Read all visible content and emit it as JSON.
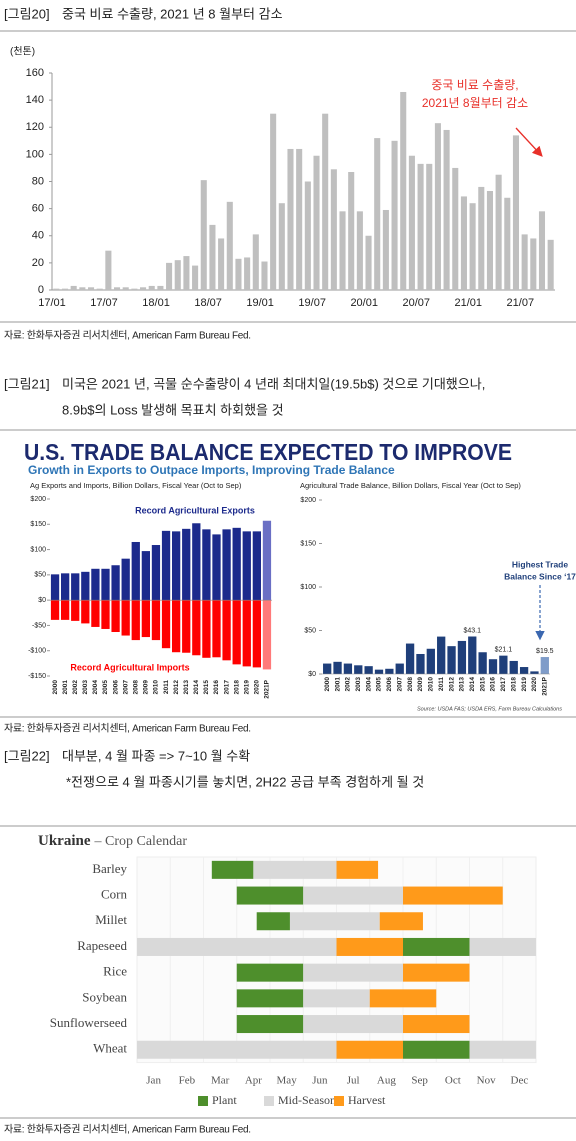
{
  "figures": [
    {
      "label": "[그림20]",
      "caption": [
        "중국 비료 수출량, 2021 년 8 월부터 감소"
      ],
      "source": "자료: 한화투자증권 리서치센터, American Farm Bureau Fed."
    },
    {
      "label": "[그림21]",
      "caption": [
        "미국은 2021 년, 곡물 순수출량이 4 년래 최대치일(19.5b$) 것으로 기대했으나,",
        "8.9b$의 Loss 발생해 목표치 하회했을 것"
      ],
      "source": "자료: 한화투자증권 리서치센터, American Farm Bureau Fed.",
      "banner": {
        "title": "U.S. TRADE BALANCE EXPECTED TO IMPROVE",
        "subtitle": "Growth in Exports to Outpace Imports, Improving Trade Balance",
        "source": "Source: USDA FAS; USDA ERS, Farm Bureau Calculations"
      }
    },
    {
      "label": "[그림22]",
      "caption": [
        "대부분, 4 월 파종 => 7~10 월 수확",
        "*전쟁으로 4 월 파종시기를 놓치면, 2H22 공급 부족 경험하게 될 것"
      ],
      "source": "자료: 한화투자증권 리서치센터, American Farm Bureau Fed."
    }
  ],
  "chart_data": [
    {
      "type": "bar",
      "ylabel": "(천톤)",
      "categories": [
        "17/01",
        null,
        null,
        null,
        null,
        null,
        "17/07",
        null,
        null,
        null,
        null,
        null,
        "18/01",
        null,
        null,
        null,
        null,
        null,
        "18/07",
        null,
        null,
        null,
        null,
        null,
        "19/01",
        null,
        null,
        null,
        null,
        null,
        "19/07",
        null,
        null,
        null,
        null,
        null,
        "20/01",
        null,
        null,
        null,
        null,
        null,
        "20/07",
        null,
        null,
        null,
        null,
        null,
        "21/01",
        null,
        null,
        null,
        null,
        null,
        "21/07",
        null,
        null,
        null
      ],
      "values": [
        1,
        1,
        3,
        2,
        2,
        1,
        29,
        2,
        2,
        1,
        2,
        3,
        3,
        20,
        22,
        25,
        18,
        81,
        48,
        38,
        65,
        23,
        24,
        41,
        21,
        130,
        64,
        104,
        104,
        80,
        99,
        130,
        89,
        58,
        87,
        58,
        40,
        112,
        59,
        110,
        146,
        99,
        93,
        93,
        123,
        118,
        90,
        69,
        64,
        76,
        73,
        85,
        68,
        114,
        41,
        38,
        58,
        37
      ],
      "color": "#bfbfbf",
      "ylim": [
        0,
        160
      ],
      "yticks": [
        0,
        20,
        40,
        60,
        80,
        100,
        120,
        140,
        160
      ],
      "annotation": [
        "중국 비료 수출량,",
        "2021년 8월부터 감소"
      ],
      "annotation_color": "#e8302a"
    },
    {
      "type": "bar",
      "title": "Ag Exports and Imports, Billion Dollars, Fiscal Year (Oct to Sep)",
      "categories": [
        "2000",
        "2001",
        "2002",
        "2003",
        "2004",
        "2005",
        "2006",
        "2007",
        "2008",
        "2009",
        "2010",
        "2011",
        "2012",
        "2013",
        "2014",
        "2015",
        "2016",
        "2017",
        "2018",
        "2019",
        "2020",
        "2021P"
      ],
      "series": [
        {
          "name": "Record Agricultural Exports",
          "color": "#1c2a8c",
          "forecast_color": "#6a6fc4",
          "values": [
            51,
            53,
            53,
            56,
            62,
            62,
            69,
            82,
            115,
            97,
            109,
            137,
            136,
            141,
            152,
            140,
            130,
            140,
            143,
            136,
            136,
            157
          ]
        },
        {
          "name": "Record Agricultural Imports",
          "color": "#ff0000",
          "forecast_color": "#ff7a7a",
          "values": [
            -39,
            -39,
            -41,
            -46,
            -53,
            -57,
            -63,
            -70,
            -79,
            -73,
            -79,
            -95,
            -103,
            -104,
            -109,
            -114,
            -113,
            -119,
            -127,
            -131,
            -133,
            -137
          ]
        }
      ],
      "ylim": [
        -150,
        200
      ],
      "yticks": [
        {
          "value": 200,
          "label": "$200"
        },
        {
          "value": 150,
          "label": "$150"
        },
        {
          "value": 100,
          "label": "$100"
        },
        {
          "value": 50,
          "label": "$50"
        },
        {
          "value": 0,
          "label": "$0"
        },
        {
          "value": -50,
          "label": "-$50"
        },
        {
          "value": -100,
          "label": "-$100"
        },
        {
          "value": -150,
          "label": "-$150"
        }
      ]
    },
    {
      "type": "bar",
      "title": "Agricultural Trade Balance, Billion Dollars, Fiscal Year (Oct to Sep)",
      "categories": [
        "2000",
        "2001",
        "2002",
        "2003",
        "2004",
        "2005",
        "2006",
        "2007",
        "2008",
        "2009",
        "2010",
        "2011",
        "2012",
        "2013",
        "2014",
        "2015",
        "2016",
        "2017",
        "2018",
        "2019",
        "2020",
        "2021P"
      ],
      "values": [
        12,
        14,
        12,
        10,
        9,
        5,
        6,
        12,
        35,
        23,
        29,
        43,
        32,
        38,
        43.1,
        25,
        17,
        21.1,
        15,
        8,
        3,
        19.5
      ],
      "value_labels": [
        null,
        null,
        null,
        null,
        null,
        null,
        null,
        null,
        null,
        null,
        null,
        null,
        null,
        null,
        "$43.1",
        null,
        null,
        "$21.1",
        null,
        null,
        null,
        "$19.5"
      ],
      "color": "#1f3f7a",
      "forecast_color": "#7f9cc9",
      "ylim": [
        0,
        200
      ],
      "yticks": [
        {
          "value": 0,
          "label": "$0"
        },
        {
          "value": 50,
          "label": "$50"
        },
        {
          "value": 100,
          "label": "$100"
        },
        {
          "value": 150,
          "label": "$150"
        },
        {
          "value": 200,
          "label": "$200"
        }
      ],
      "annotation": [
        "Highest Trade",
        "Balance Since ‘17"
      ],
      "annotation_color": "#1f3f7a"
    },
    {
      "type": "gantt",
      "title": "Ukraine",
      "subtitle": "– Crop Calendar",
      "categories": [
        "Barley",
        "Corn",
        "Millet",
        "Rapeseed",
        "Rice",
        "Soybean",
        "Sunflowerseed",
        "Wheat"
      ],
      "months": [
        "Jan",
        "Feb",
        "Mar",
        "Apr",
        "May",
        "Jun",
        "Jul",
        "Aug",
        "Sep",
        "Oct",
        "Nov",
        "Dec"
      ],
      "xlim": [
        0,
        12
      ],
      "series": [
        {
          "name": "Plant",
          "color": "#4e8f2c",
          "ranges": [
            [
              [
                2.25,
                3.5
              ]
            ],
            [
              [
                3,
                5
              ]
            ],
            [
              [
                3.6,
                4.6
              ]
            ],
            [
              [
                8,
                10
              ]
            ],
            [
              [
                3,
                5
              ]
            ],
            [
              [
                3,
                5
              ]
            ],
            [
              [
                3,
                5
              ]
            ],
            [
              [
                8,
                10
              ]
            ]
          ]
        },
        {
          "name": "Mid-Season",
          "color": "#d9d9d9",
          "ranges": [
            [
              [
                3.5,
                6
              ]
            ],
            [
              [
                5,
                8
              ]
            ],
            [
              [
                4.6,
                7.3
              ]
            ],
            [
              [
                0,
                6
              ],
              [
                10,
                12
              ]
            ],
            [
              [
                5,
                8
              ]
            ],
            [
              [
                5,
                7
              ]
            ],
            [
              [
                5,
                8
              ]
            ],
            [
              [
                0,
                6
              ],
              [
                10,
                12
              ]
            ]
          ]
        },
        {
          "name": "Harvest",
          "color": "#ff9a1a",
          "ranges": [
            [
              [
                6,
                7.25
              ]
            ],
            [
              [
                8,
                11
              ]
            ],
            [
              [
                7.3,
                8.6
              ]
            ],
            [
              [
                6,
                8
              ]
            ],
            [
              [
                8,
                10
              ]
            ],
            [
              [
                7,
                9
              ]
            ],
            [
              [
                8,
                10
              ]
            ],
            [
              [
                6,
                8
              ]
            ]
          ]
        }
      ]
    }
  ]
}
